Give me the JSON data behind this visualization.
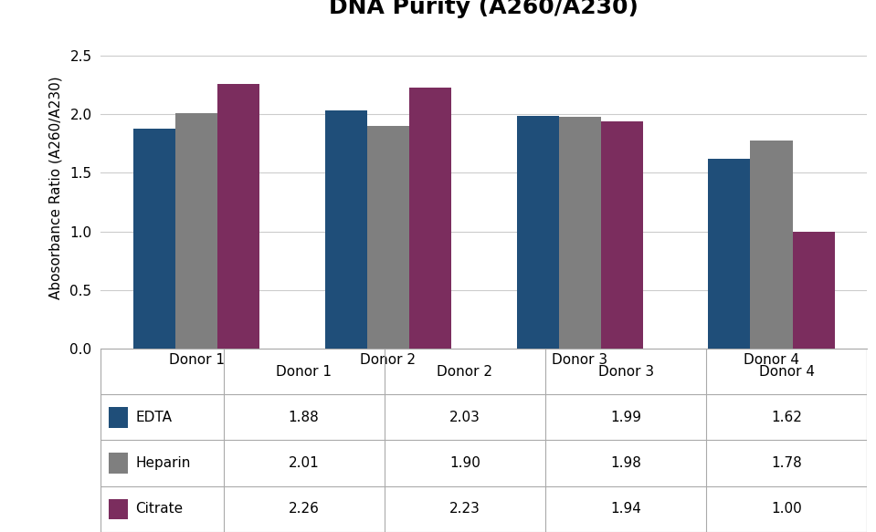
{
  "title": "DNA Purity (A260/A230)",
  "ylabel": "Abosorbance Ratio (A260/A230)",
  "categories": [
    "Donor 1",
    "Donor 2",
    "Donor 3",
    "Donor 4"
  ],
  "series": [
    {
      "label": "EDTA",
      "values": [
        1.88,
        2.03,
        1.99,
        1.62
      ],
      "color": "#1f4e79"
    },
    {
      "label": "Heparin",
      "values": [
        2.01,
        1.9,
        1.98,
        1.78
      ],
      "color": "#7f7f7f"
    },
    {
      "label": "Citrate",
      "values": [
        2.26,
        2.23,
        1.94,
        1.0
      ],
      "color": "#7b2d5e"
    }
  ],
  "ylim": [
    0.0,
    2.75
  ],
  "yticks": [
    0.0,
    0.5,
    1.0,
    1.5,
    2.0,
    2.5
  ],
  "bar_width": 0.22,
  "title_fontsize": 18,
  "axis_label_fontsize": 11,
  "tick_fontsize": 11,
  "table_fontsize": 11,
  "background_color": "#ffffff",
  "grid_color": "#cccccc",
  "line_color": "#aaaaaa"
}
